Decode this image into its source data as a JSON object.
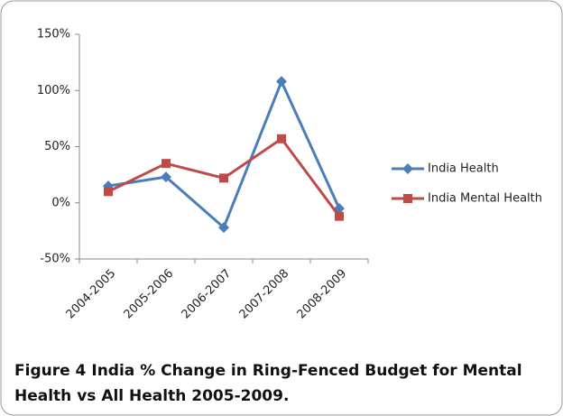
{
  "chart_data": {
    "type": "line",
    "categories": [
      "2004-2005",
      "2005-2006",
      "2006-2007",
      "2007-2008",
      "2008-2009"
    ],
    "series": [
      {
        "name": "India Health",
        "color": "#4a7ebb",
        "marker": "diamond",
        "values": [
          15,
          23,
          -22,
          108,
          -5
        ]
      },
      {
        "name": "India Mental Health",
        "color": "#be4b48",
        "marker": "square",
        "values": [
          10,
          35,
          22,
          57,
          -12
        ]
      }
    ],
    "ylim": [
      -50,
      150
    ],
    "yticks": [
      {
        "value": -50,
        "label": "-50%"
      },
      {
        "value": 0,
        "label": "0%"
      },
      {
        "value": 50,
        "label": "50%"
      },
      {
        "value": 100,
        "label": "100%"
      },
      {
        "value": 150,
        "label": "150%"
      }
    ],
    "legend": "right",
    "caption_label": "Figure 4",
    "caption_line1": "India % Change in Ring-Fenced Budget for Mental",
    "caption_line2": "Health vs All Health 2005-2009."
  }
}
